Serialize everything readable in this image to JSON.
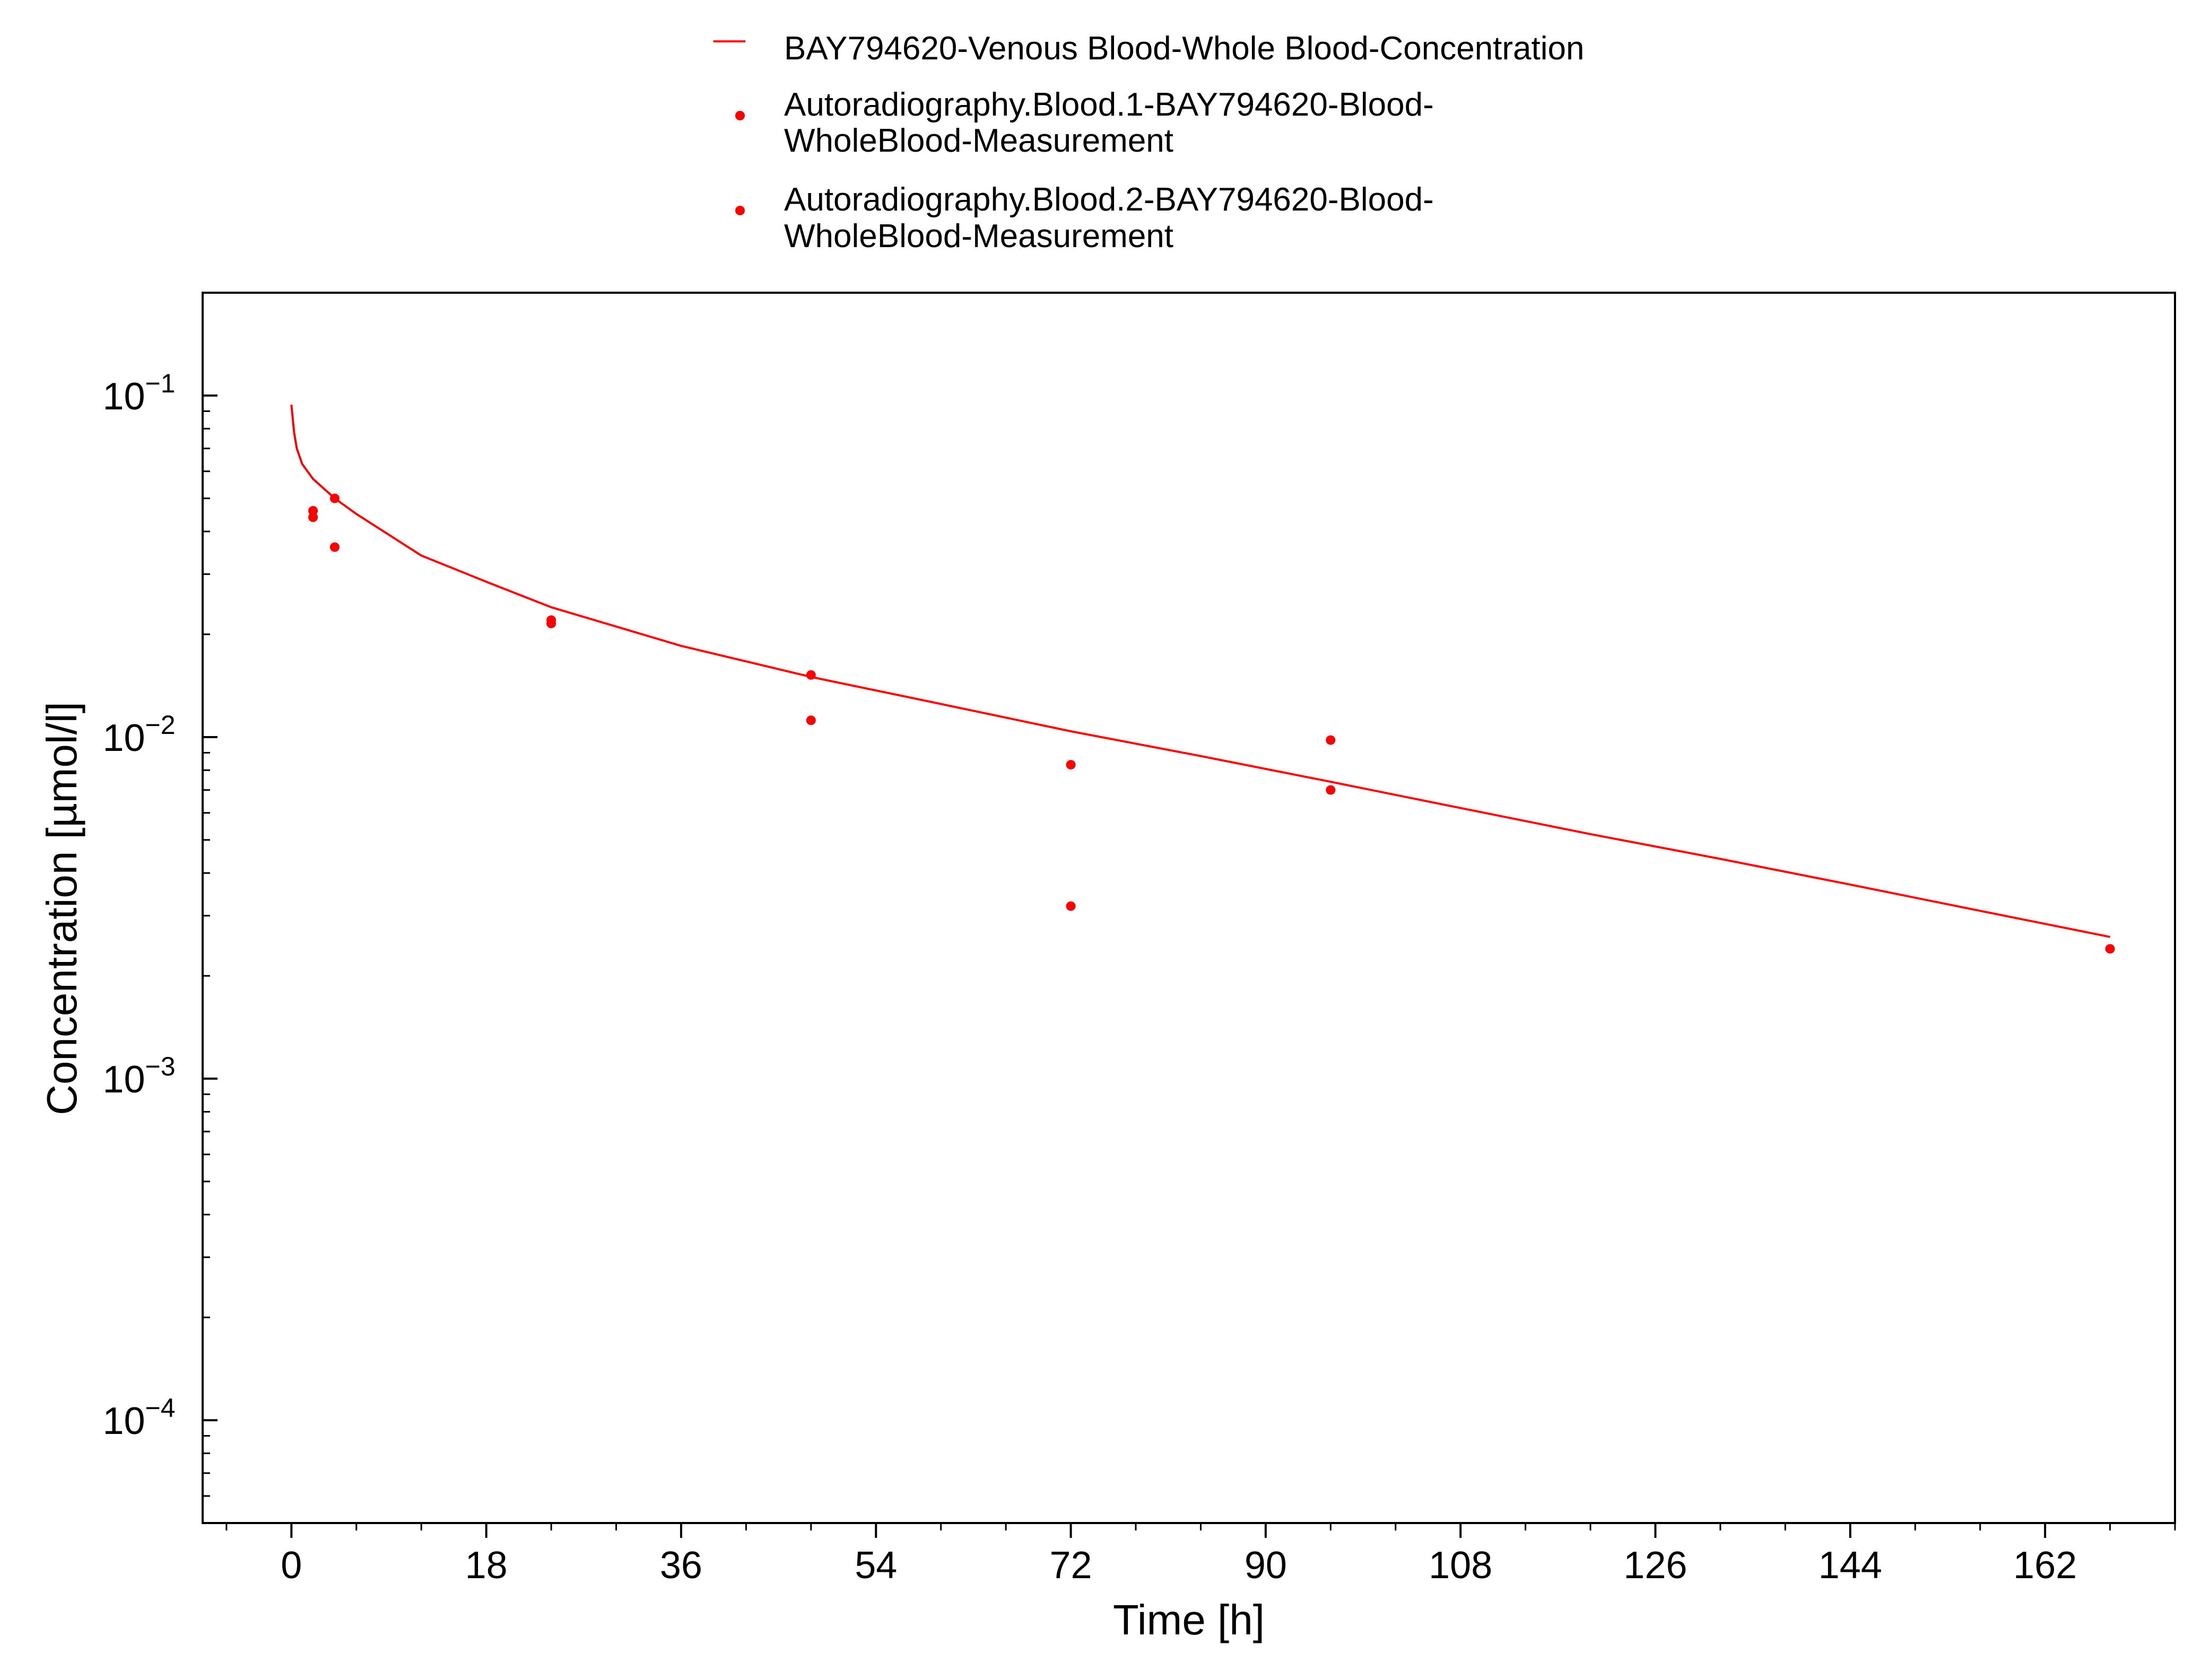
{
  "chart_data": {
    "type": "scatter",
    "xlabel": "Time [h]",
    "ylabel": "Concentration [µmol/l]",
    "xlim": [
      -8.2,
      174
    ],
    "ylim": [
      5e-05,
      0.2
    ],
    "y_scale": "log",
    "x_ticks": [
      0,
      18,
      36,
      54,
      72,
      90,
      108,
      126,
      144,
      162
    ],
    "x_tick_labels": [
      "0",
      "18",
      "36",
      "54",
      "72",
      "90",
      "108",
      "126",
      "144",
      "162"
    ],
    "y_ticks": [
      0.1,
      0.01,
      0.001,
      0.0001
    ],
    "y_tick_labels": [
      {
        "base": "10",
        "exp": "−1"
      },
      {
        "base": "10",
        "exp": "−2"
      },
      {
        "base": "10",
        "exp": "−3"
      },
      {
        "base": "10",
        "exp": "−4"
      }
    ],
    "grid": false,
    "legend_position": "top",
    "legend": [
      {
        "lines": [
          "BAY794620-Venous Blood-Whole Blood-Concentration"
        ],
        "marker": "line"
      },
      {
        "lines": [
          "Autoradiography.Blood.1-BAY794620-Blood-",
          "WholeBlood-Measurement"
        ],
        "marker": "dot"
      },
      {
        "lines": [
          "Autoradiography.Blood.2-BAY794620-Blood-",
          "WholeBlood-Measurement"
        ],
        "marker": "dot"
      }
    ],
    "series": [
      {
        "name": "BAY794620-Venous Blood-Whole Blood-Concentration",
        "type": "line",
        "color": "#ff0000",
        "x": [
          0,
          0.25,
          0.5,
          1,
          2,
          4,
          6,
          8,
          12,
          18,
          24,
          36,
          48,
          60,
          72,
          84,
          96,
          108,
          120,
          132,
          144,
          156,
          168
        ],
        "y": [
          0.094,
          0.078,
          0.07,
          0.063,
          0.057,
          0.05,
          0.045,
          0.041,
          0.034,
          0.0285,
          0.024,
          0.0185,
          0.015,
          0.0125,
          0.0104,
          0.0088,
          0.0074,
          0.0062,
          0.0052,
          0.0044,
          0.0037,
          0.0031,
          0.0026
        ]
      },
      {
        "name": "Autoradiography.Blood.1-BAY794620-Blood-WholeBlood-Measurement",
        "type": "scatter",
        "color": "#ff0000",
        "x": [
          2,
          4,
          24,
          48,
          72,
          96
        ],
        "y": [
          0.046,
          0.05,
          0.022,
          0.0152,
          0.0083,
          0.0098
        ]
      },
      {
        "name": "Autoradiography.Blood.2-BAY794620-Blood-WholeBlood-Measurement",
        "type": "scatter",
        "color": "#ff0000",
        "x": [
          2,
          4,
          24,
          48,
          72,
          96,
          168
        ],
        "y": [
          0.044,
          0.036,
          0.0215,
          0.0112,
          0.0032,
          0.007,
          0.0024
        ]
      }
    ]
  }
}
